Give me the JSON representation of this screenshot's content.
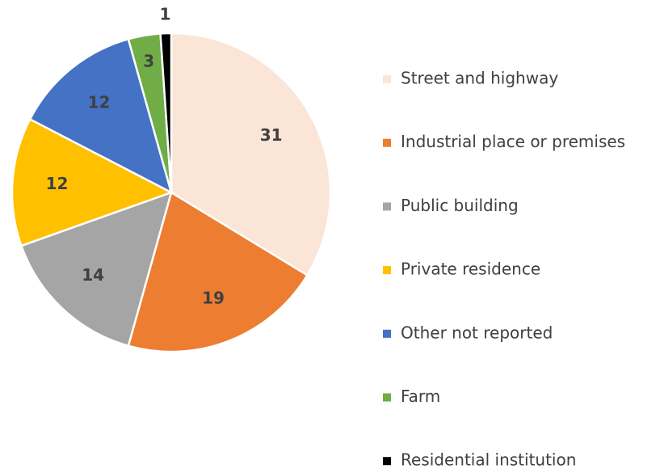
{
  "chart_data": {
    "type": "pie",
    "categories": [
      "Street and highway",
      "Industrial place or premises",
      "Public building",
      "Private residence",
      "Other not reported",
      "Farm",
      "Residential institution"
    ],
    "values": [
      31,
      19,
      14,
      12,
      12,
      3,
      1
    ],
    "colors": [
      "#FBE5D6",
      "#ED7D31",
      "#A5A5A5",
      "#FFC000",
      "#4472C4",
      "#70AD47",
      "#000000"
    ],
    "legend": "right"
  }
}
